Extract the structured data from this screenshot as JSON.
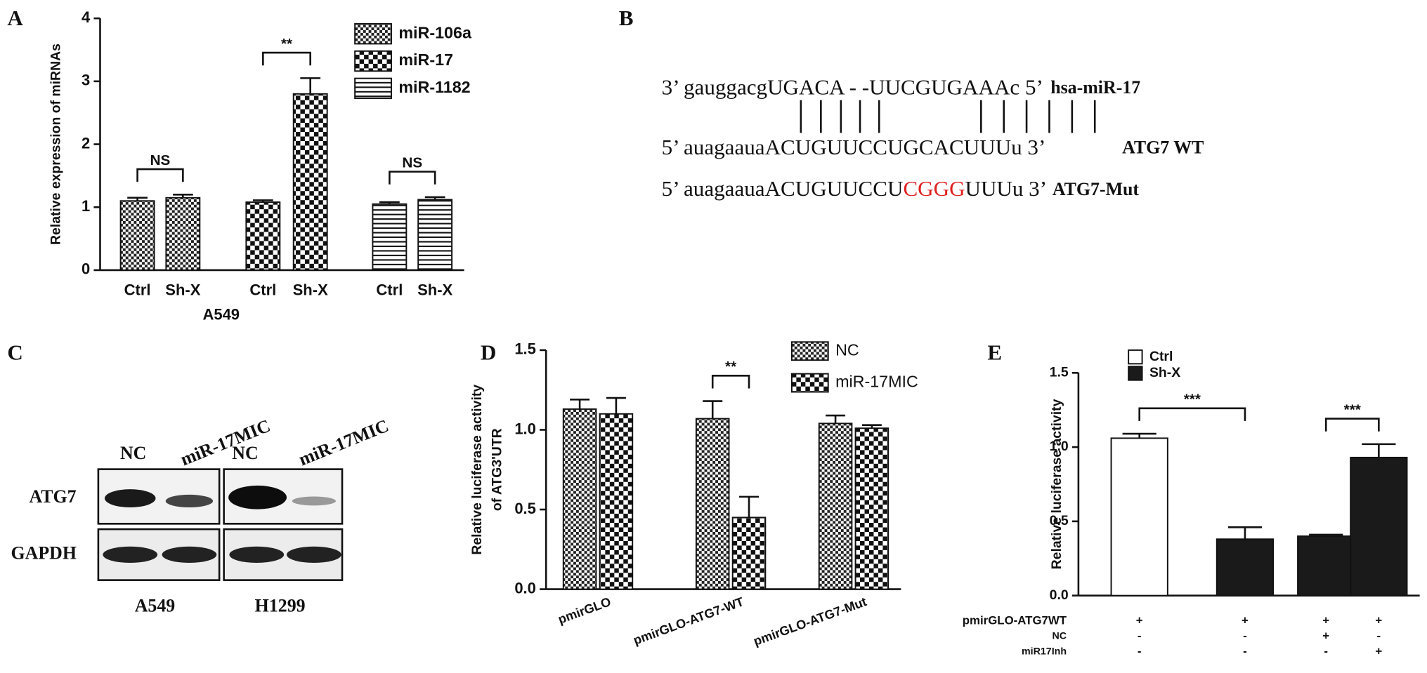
{
  "panels": [
    "A",
    "B",
    "C",
    "D",
    "E"
  ],
  "chart_data": [
    {
      "type": "bar",
      "ylabel": "Relative expression of miRNAs",
      "xlabel": "A549",
      "categories": [
        "Ctrl",
        "Sh-X"
      ],
      "series": [
        {
          "name": "miR-106a",
          "pattern": "fine-check",
          "values": [
            1.1,
            1.15
          ],
          "errors": [
            0.05,
            0.05
          ]
        },
        {
          "name": "miR-17",
          "pattern": "check",
          "values": [
            1.08,
            2.8
          ],
          "errors": [
            0.03,
            0.25
          ]
        },
        {
          "name": "miR-1182",
          "pattern": "hlines",
          "values": [
            1.05,
            1.12
          ],
          "errors": [
            0.03,
            0.04
          ]
        }
      ],
      "annotations": [
        "NS",
        "**",
        "NS"
      ],
      "ylim": [
        0,
        4
      ],
      "yticks": [
        0,
        1,
        2,
        3,
        4
      ]
    },
    {
      "type": "bar",
      "ylabel": [
        "Relative luciferase activity",
        "of ATG3'UTR"
      ],
      "categories": [
        "pmirGLO",
        "pmirGLO-ATG7-WT",
        "pmirGLO-ATG7-Mut"
      ],
      "series": [
        {
          "name": "NC",
          "pattern": "fine-check",
          "values": [
            1.13,
            1.07,
            1.04
          ],
          "errors": [
            0.06,
            0.11,
            0.05
          ]
        },
        {
          "name": "miR-17MIC",
          "pattern": "check",
          "values": [
            1.1,
            0.45,
            1.01
          ],
          "errors": [
            0.1,
            0.13,
            0.02
          ]
        }
      ],
      "annotations": [
        null,
        "**",
        null
      ],
      "ylim": [
        0,
        1.5
      ],
      "yticks": [
        {
          "value": 0,
          "label": "0.0"
        },
        0.5,
        {
          "value": 1,
          "label": "1.0"
        },
        1.5
      ]
    },
    {
      "type": "bar",
      "ylabel": "Relative luciferase activity",
      "series": [
        {
          "name": "Ctrl",
          "color": "#ffffff",
          "values": [
            1.06,
            null,
            null,
            null
          ],
          "errors": [
            0.03,
            null,
            null,
            null
          ]
        },
        {
          "name": "Sh-X",
          "color": "#1a1a1a",
          "values": [
            null,
            0.38,
            0.4,
            0.93
          ],
          "errors": [
            null,
            0.08,
            0.01,
            0.09
          ]
        }
      ],
      "conditions": [
        {
          "label": "pmirGLO-ATG7WT",
          "signs": [
            "+",
            "+",
            "+",
            "+"
          ]
        },
        {
          "label": "NC",
          "signs": [
            "-",
            "-",
            "+",
            "-"
          ]
        },
        {
          "label": "miR17Inh",
          "signs": [
            "-",
            "-",
            "-",
            "+"
          ]
        }
      ],
      "annotations": [
        "***",
        "***"
      ],
      "ylim": [
        0,
        1.5
      ],
      "yticks": [
        {
          "value": 0,
          "label": "0.0"
        },
        0.5,
        {
          "value": 1,
          "label": "1.0"
        },
        1.5
      ]
    }
  ],
  "sequences": {
    "mirna": {
      "seq": "3’ gauggacgUGACA -  -UUCGUGAAAc 5’",
      "name": "hsa-miR-17"
    },
    "wt": {
      "seq": "5’ auagaauaACUGUUCCUGCACUUUu 3’",
      "name": "ATG7 WT"
    },
    "mut": {
      "before": "5’ auagaauaACUGUUCCU",
      "mutated": "CGGG",
      "after": "UUUu 3’",
      "name": "ATG7-Mut"
    }
  },
  "blot": {
    "lanes": [
      "NC",
      "miR-17MIC",
      "NC",
      "miR-17MIC"
    ],
    "proteins": [
      "ATG7",
      "GAPDH"
    ],
    "cells": [
      "A549",
      "H1299"
    ]
  }
}
